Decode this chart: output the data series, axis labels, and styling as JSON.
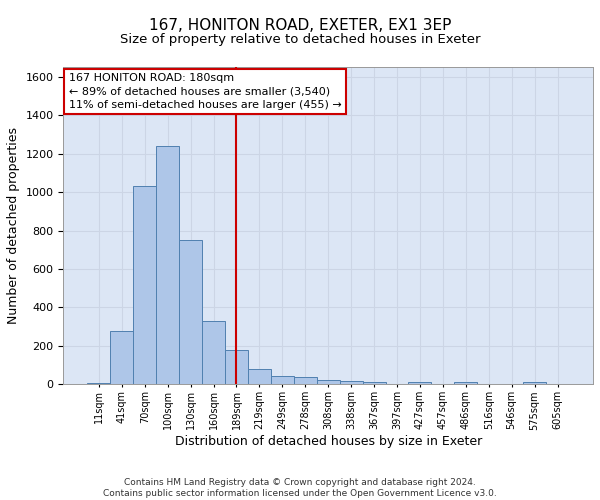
{
  "title": "167, HONITON ROAD, EXETER, EX1 3EP",
  "subtitle": "Size of property relative to detached houses in Exeter",
  "xlabel": "Distribution of detached houses by size in Exeter",
  "ylabel": "Number of detached properties",
  "bin_labels": [
    "11sqm",
    "41sqm",
    "70sqm",
    "100sqm",
    "130sqm",
    "160sqm",
    "189sqm",
    "219sqm",
    "249sqm",
    "278sqm",
    "308sqm",
    "338sqm",
    "367sqm",
    "397sqm",
    "427sqm",
    "457sqm",
    "486sqm",
    "516sqm",
    "546sqm",
    "575sqm",
    "605sqm"
  ],
  "bar_heights": [
    10,
    280,
    1030,
    1240,
    750,
    330,
    180,
    80,
    45,
    38,
    25,
    18,
    15,
    0,
    12,
    0,
    12,
    0,
    0,
    12,
    0
  ],
  "bar_color": "#aec6e8",
  "bar_edge_color": "#5080b0",
  "vline_x_index": 6,
  "vline_color": "#cc0000",
  "annotation_text": "167 HONITON ROAD: 180sqm\n← 89% of detached houses are smaller (3,540)\n11% of semi-detached houses are larger (455) →",
  "annotation_box_color": "#ffffff",
  "annotation_box_edge_color": "#cc0000",
  "annotation_fontsize": 8,
  "ylim": [
    0,
    1650
  ],
  "yticks": [
    0,
    200,
    400,
    600,
    800,
    1000,
    1200,
    1400,
    1600
  ],
  "grid_color": "#ccd5e5",
  "background_color": "#dce6f5",
  "title_fontsize": 11,
  "subtitle_fontsize": 9.5,
  "xlabel_fontsize": 9,
  "ylabel_fontsize": 9,
  "footer_text": "Contains HM Land Registry data © Crown copyright and database right 2024.\nContains public sector information licensed under the Open Government Licence v3.0."
}
